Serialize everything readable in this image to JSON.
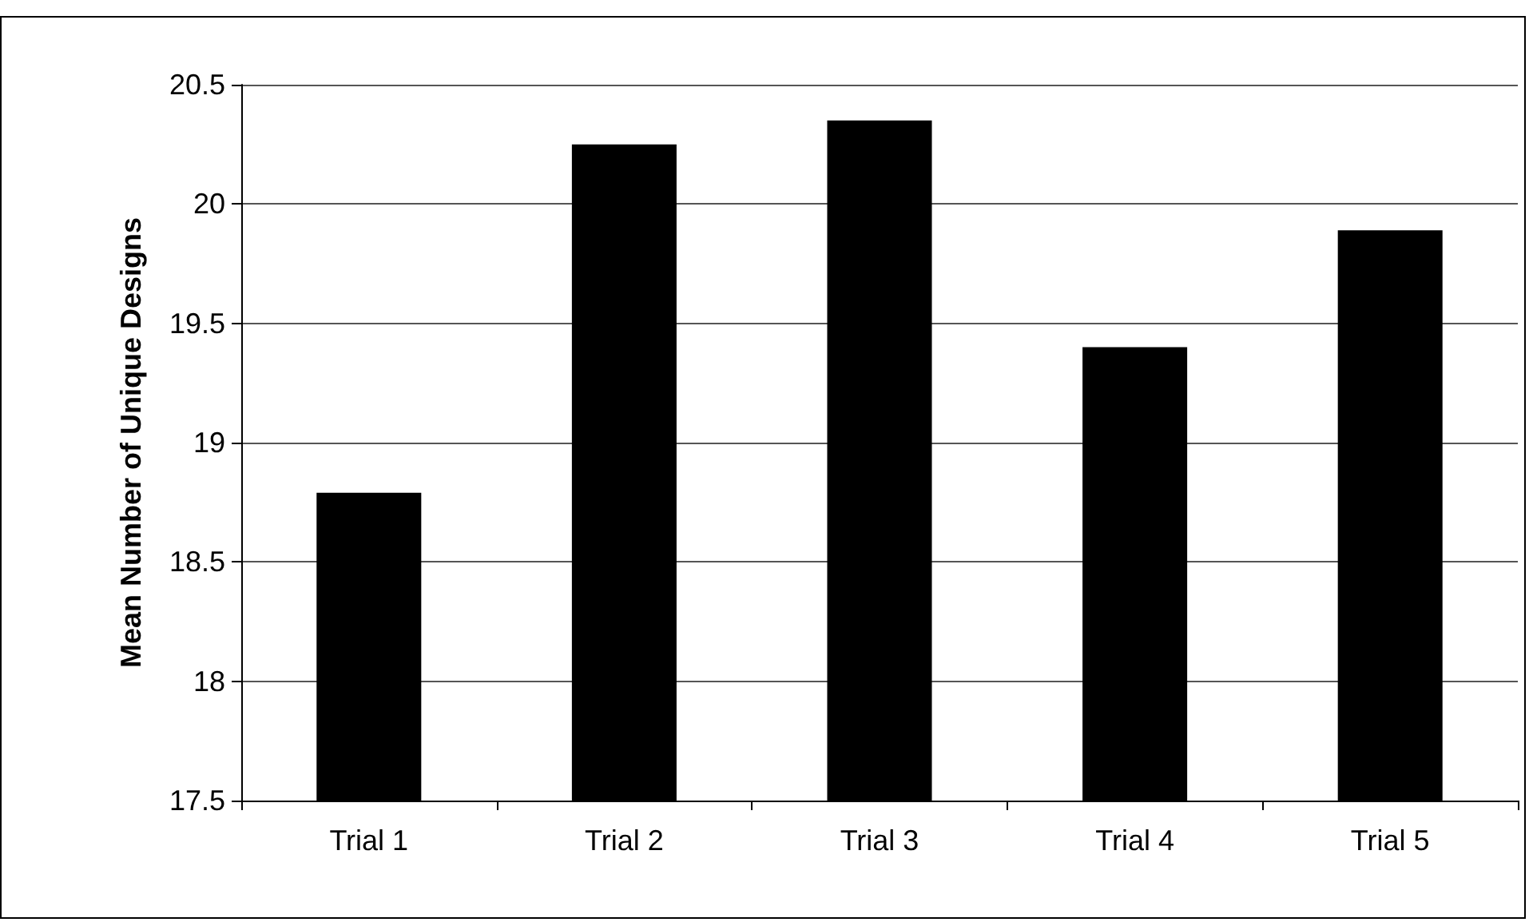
{
  "chart_data": {
    "type": "bar",
    "ylabel": "Mean Number of Unique Designs",
    "categories": [
      "Trial 1",
      "Trial 2",
      "Trial 3",
      "Trial 4",
      "Trial 5"
    ],
    "values": [
      18.79,
      20.25,
      20.35,
      19.4,
      19.89
    ],
    "color": "#000000",
    "ylim": [
      17.5,
      20.5
    ],
    "yticks": [
      17.5,
      18,
      18.5,
      19,
      19.5,
      20,
      20.5
    ],
    "grid": "y"
  }
}
